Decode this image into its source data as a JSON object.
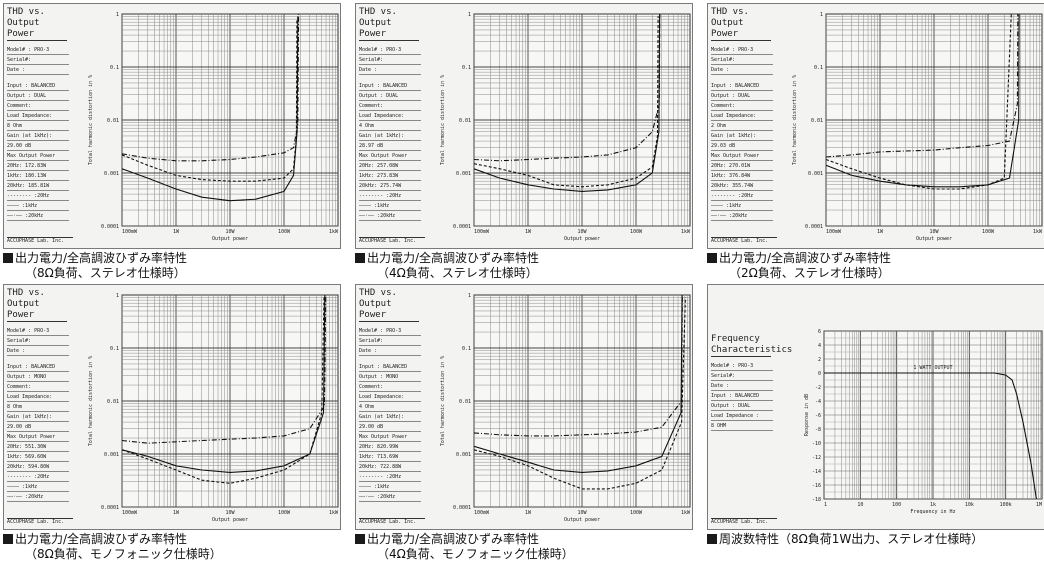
{
  "panels": [
    {
      "title": [
        "THD vs.",
        "Output Power"
      ],
      "meta": [
        "Model# : PRO-3",
        "Serial#:",
        "Date  :",
        "",
        "Input  : BALANCED",
        "Output : DUAL",
        "Comment:",
        "Load Impedance:",
        "   8  Ohm",
        "Gain (at 1kHz):",
        "   29.00  dB",
        "Max Output Power",
        "   20Hz: 172.83W",
        "   1kHz: 180.13W",
        "   20kHz: 185.81W",
        "-------- :20Hz",
        "———— :1kHz",
        "——·—— :20kHz"
      ],
      "footer": "ACCUPHASE Lab. Inc.",
      "caption_line1": "出力電力/全高調波ひずみ率特性",
      "caption_line2": "（8Ω負荷、ステレオ仕様時）"
    },
    {
      "title": [
        "THD vs.",
        "Output Power"
      ],
      "meta": [
        "Model# : PRO-3",
        "Serial#:",
        "Date  :",
        "",
        "Input  : BALANCED",
        "Output : DUAL",
        "Comment:",
        "Load Impedance:",
        "   4  Ohm",
        "Gain (at 1kHz):",
        "   28.97  dB",
        "Max Output Power",
        "   20Hz: 257.08W",
        "   1kHz: 273.83W",
        "   20kHz: 275.74W",
        "-------- :20Hz",
        "———— :1kHz",
        "——·—— :20kHz"
      ],
      "footer": "ACCUPHASE Lab. Inc.",
      "caption_line1": "出力電力/全高調波ひずみ率特性",
      "caption_line2": "（4Ω負荷、ステレオ仕様時）"
    },
    {
      "title": [
        "THD vs.",
        "Output Power"
      ],
      "meta": [
        "Model# : PRO-3",
        "Serial#:",
        "Date  :",
        "",
        "Input  : BALANCED",
        "Output : DUAL",
        "Comment:",
        "Load Impedance:",
        "   2  Ohm",
        "Gain (at 1kHz):",
        "   29.03  dB",
        "Max Output Power",
        "   20Hz: 270.01W",
        "   1kHz: 376.84W",
        "   20kHz: 355.74W",
        "-------- :20Hz",
        "———— :1kHz",
        "——·—— :20kHz"
      ],
      "footer": "ACCUPHASE Lab. Inc.",
      "caption_line1": "出力電力/全高調波ひずみ率特性",
      "caption_line2": "（2Ω負荷、ステレオ仕様時）"
    },
    {
      "title": [
        "THD vs.",
        "Output Power"
      ],
      "meta": [
        "Model# : PRO-3",
        "Serial#:",
        "Date  :",
        "",
        "Input  : BALANCED",
        "Output : MONO",
        "Comment:",
        "Load Impedance:",
        "   8  Ohm",
        "Gain (at 1kHz):",
        "   29.00  dB",
        "Max Output Power",
        "   20Hz: 551.30W",
        "   1kHz: 569.60W",
        "   20kHz: 594.80W",
        "-------- :20Hz",
        "———— :1kHz",
        "——·—— :20kHz"
      ],
      "footer": "ACCUPHASE Lab. Inc.",
      "caption_line1": "出力電力/全高調波ひずみ率特性",
      "caption_line2": "（8Ω負荷、モノフォニック仕様時）"
    },
    {
      "title": [
        "THD vs.",
        "Output Power"
      ],
      "meta": [
        "Model# : PRO-3",
        "Serial#:",
        "Date  :",
        "",
        "Input  : BALANCED",
        "Output : MONO",
        "Comment:",
        "Load Impedance:",
        "   4  Ohm",
        "Gain (at 1kHz):",
        "   29.00  dB",
        "Max Output Power",
        "   20Hz: 820.99W",
        "   1kHz: 713.69W",
        "   20kHz: 722.88W",
        "-------- :20Hz",
        "———— :1kHz",
        "——·—— :20kHz"
      ],
      "footer": "ACCUPHASE Lab. Inc.",
      "caption_line1": "出力電力/全高調波ひずみ率特性",
      "caption_line2": "（4Ω負荷、モノフォニック仕様時）"
    },
    {
      "title": [
        "Frequency",
        "Characteristics"
      ],
      "meta": [
        "Model# : PRO-3",
        "Serial#:",
        "Date  :",
        "Input  : BALANCED",
        "Output : DUAL",
        "Load Impedance :",
        "   8  OHM"
      ],
      "footer": "ACCUPHASE Lab. Inc.",
      "caption_line1": "周波数特性（8Ω負荷1W出力、ステレオ仕様時）",
      "caption_line2": ""
    }
  ],
  "chart_data": [
    {
      "type": "line",
      "xscale": "log",
      "yscale": "log",
      "xlabel": "Output power",
      "ylabel": "Total harmonic distortion in %",
      "xlim": [
        0.1,
        1000
      ],
      "ylim": [
        0.0001,
        1
      ],
      "xticks": [
        "100mW",
        "1W",
        "10W",
        "100W",
        "1kW"
      ],
      "yticks": [
        "0.0001",
        "0.001",
        "0.01",
        "0.1",
        "1"
      ],
      "grid": true,
      "series": [
        {
          "name": "20Hz",
          "style": "dashed",
          "x": [
            0.1,
            0.3,
            1,
            3,
            10,
            30,
            100,
            150,
            170,
            173
          ],
          "y": [
            0.0022,
            0.0014,
            0.0009,
            0.00075,
            0.0007,
            0.0007,
            0.0008,
            0.0012,
            0.005,
            0.8
          ]
        },
        {
          "name": "1kHz",
          "style": "solid",
          "x": [
            0.1,
            0.3,
            1,
            3,
            10,
            30,
            100,
            150,
            175,
            180
          ],
          "y": [
            0.0012,
            0.0008,
            0.0005,
            0.00035,
            0.0003,
            0.00032,
            0.00045,
            0.0009,
            0.006,
            0.9
          ]
        },
        {
          "name": "20kHz",
          "style": "dashdot",
          "x": [
            0.1,
            0.3,
            1,
            3,
            10,
            30,
            100,
            150,
            180,
            186
          ],
          "y": [
            0.0023,
            0.0019,
            0.0017,
            0.0017,
            0.0018,
            0.002,
            0.0024,
            0.003,
            0.008,
            1
          ]
        }
      ]
    },
    {
      "type": "line",
      "xscale": "log",
      "yscale": "log",
      "xlabel": "Output power",
      "ylabel": "Total harmonic distortion in %",
      "xlim": [
        0.1,
        1000
      ],
      "ylim": [
        0.0001,
        1
      ],
      "xticks": [
        "100mW",
        "1W",
        "10W",
        "100W",
        "1kW"
      ],
      "yticks": [
        "0.0001",
        "0.001",
        "0.01",
        "0.1",
        "1"
      ],
      "grid": true,
      "series": [
        {
          "name": "20Hz",
          "style": "dashed",
          "x": [
            0.1,
            0.3,
            1,
            3,
            10,
            30,
            100,
            200,
            250,
            257
          ],
          "y": [
            0.0015,
            0.0012,
            0.0009,
            0.0006,
            0.00055,
            0.0006,
            0.0008,
            0.0013,
            0.005,
            0.9
          ]
        },
        {
          "name": "1kHz",
          "style": "solid",
          "x": [
            0.1,
            0.3,
            1,
            3,
            10,
            30,
            100,
            200,
            265,
            274
          ],
          "y": [
            0.0012,
            0.0008,
            0.0006,
            0.0005,
            0.00045,
            0.00048,
            0.0006,
            0.001,
            0.006,
            1
          ]
        },
        {
          "name": "20kHz",
          "style": "dashdot",
          "x": [
            0.1,
            0.3,
            1,
            3,
            10,
            30,
            100,
            200,
            270,
            276
          ],
          "y": [
            0.0018,
            0.0017,
            0.0018,
            0.0019,
            0.002,
            0.0022,
            0.003,
            0.006,
            0.02,
            1
          ]
        }
      ]
    },
    {
      "type": "line",
      "xscale": "log",
      "yscale": "log",
      "xlabel": "Output power",
      "ylabel": "Total harmonic distortion in %",
      "xlim": [
        0.1,
        1000
      ],
      "ylim": [
        0.0001,
        1
      ],
      "xticks": [
        "100mW",
        "1W",
        "10W",
        "100W",
        "1kW"
      ],
      "yticks": [
        "0.0001",
        "0.001",
        "0.01",
        "0.1",
        "1"
      ],
      "grid": true,
      "series": [
        {
          "name": "20Hz",
          "style": "dashed",
          "x": [
            0.1,
            0.3,
            1,
            3,
            10,
            30,
            100,
            200,
            270
          ],
          "y": [
            0.0018,
            0.0012,
            0.0008,
            0.0006,
            0.0005,
            0.0005,
            0.0006,
            0.0008,
            1
          ]
        },
        {
          "name": "1kHz",
          "style": "solid",
          "x": [
            0.1,
            0.3,
            1,
            3,
            10,
            30,
            100,
            250,
            370,
            377
          ],
          "y": [
            0.0014,
            0.0009,
            0.0007,
            0.0006,
            0.00055,
            0.00055,
            0.0006,
            0.0008,
            0.01,
            1
          ]
        },
        {
          "name": "20kHz",
          "style": "dashdot",
          "x": [
            0.1,
            0.3,
            1,
            3,
            10,
            30,
            100,
            250,
            350,
            356
          ],
          "y": [
            0.002,
            0.0022,
            0.0025,
            0.0026,
            0.0027,
            0.003,
            0.0033,
            0.004,
            0.02,
            1
          ]
        }
      ]
    },
    {
      "type": "line",
      "xscale": "log",
      "yscale": "log",
      "xlabel": "Output power",
      "ylabel": "Total harmonic distortion in %",
      "xlim": [
        0.1,
        1000
      ],
      "ylim": [
        0.0001,
        1
      ],
      "xticks": [
        "100mW",
        "1W",
        "10W",
        "100W",
        "1kW"
      ],
      "yticks": [
        "0.0001",
        "0.001",
        "0.01",
        "0.1",
        "1"
      ],
      "grid": true,
      "series": [
        {
          "name": "20Hz",
          "style": "dashed",
          "x": [
            0.1,
            0.3,
            1,
            3,
            10,
            30,
            100,
            300,
            500,
            551
          ],
          "y": [
            0.0012,
            0.0008,
            0.0005,
            0.00032,
            0.00028,
            0.00035,
            0.0005,
            0.001,
            0.006,
            0.9
          ]
        },
        {
          "name": "1kHz",
          "style": "solid",
          "x": [
            0.1,
            0.3,
            1,
            3,
            10,
            30,
            100,
            300,
            540,
            570
          ],
          "y": [
            0.0012,
            0.0009,
            0.0006,
            0.0005,
            0.00045,
            0.00048,
            0.0006,
            0.001,
            0.006,
            1
          ]
        },
        {
          "name": "20kHz",
          "style": "dashdot",
          "x": [
            0.1,
            0.3,
            1,
            3,
            10,
            30,
            100,
            300,
            560,
            595
          ],
          "y": [
            0.0018,
            0.0016,
            0.0017,
            0.0018,
            0.0019,
            0.002,
            0.0022,
            0.003,
            0.008,
            1
          ]
        }
      ]
    },
    {
      "type": "line",
      "xscale": "log",
      "yscale": "log",
      "xlabel": "Output power",
      "ylabel": "Total harmonic distortion in %",
      "xlim": [
        0.1,
        1000
      ],
      "ylim": [
        0.0001,
        1
      ],
      "xticks": [
        "100mW",
        "1W",
        "10W",
        "100W",
        "1kW"
      ],
      "yticks": [
        "0.0001",
        "0.001",
        "0.01",
        "0.1",
        "1"
      ],
      "grid": true,
      "series": [
        {
          "name": "20Hz",
          "style": "dashed",
          "x": [
            0.1,
            0.3,
            1,
            3,
            10,
            30,
            100,
            300,
            700,
            821
          ],
          "y": [
            0.0012,
            0.0009,
            0.0006,
            0.00035,
            0.00022,
            0.00022,
            0.00028,
            0.0005,
            0.004,
            0.9
          ]
        },
        {
          "name": "1kHz",
          "style": "solid",
          "x": [
            0.1,
            0.3,
            1,
            3,
            10,
            30,
            100,
            300,
            680,
            714
          ],
          "y": [
            0.0014,
            0.001,
            0.0007,
            0.0005,
            0.00045,
            0.00048,
            0.0006,
            0.0009,
            0.006,
            1
          ]
        },
        {
          "name": "20kHz",
          "style": "dashdot",
          "x": [
            0.1,
            0.3,
            1,
            3,
            10,
            30,
            100,
            300,
            700,
            723
          ],
          "y": [
            0.0025,
            0.0023,
            0.0022,
            0.0022,
            0.0023,
            0.0024,
            0.0026,
            0.0032,
            0.01,
            1
          ]
        }
      ]
    },
    {
      "type": "line",
      "xscale": "log",
      "xlabel": "Frequency in Hz",
      "ylabel": "Response in dB",
      "xlim": [
        1,
        1000000
      ],
      "ylim": [
        -18,
        6
      ],
      "xticks": [
        "1",
        "10",
        "100",
        "1k",
        "10k",
        "100k",
        "1M"
      ],
      "yticks": [
        "-18",
        "-16",
        "-14",
        "-12",
        "-10",
        "-8",
        "-6",
        "-4",
        "-2",
        "0",
        "2",
        "4",
        "6"
      ],
      "annotation": "1 WATT OUTPUT",
      "grid": true,
      "series": [
        {
          "name": "",
          "style": "solid",
          "x": [
            1,
            10,
            100,
            1000,
            10000,
            50000,
            100000,
            150000,
            200000,
            300000,
            500000,
            700000
          ],
          "y": [
            0,
            0,
            0,
            0,
            0,
            0,
            -0.3,
            -1,
            -3,
            -7,
            -13,
            -18
          ]
        }
      ]
    }
  ]
}
